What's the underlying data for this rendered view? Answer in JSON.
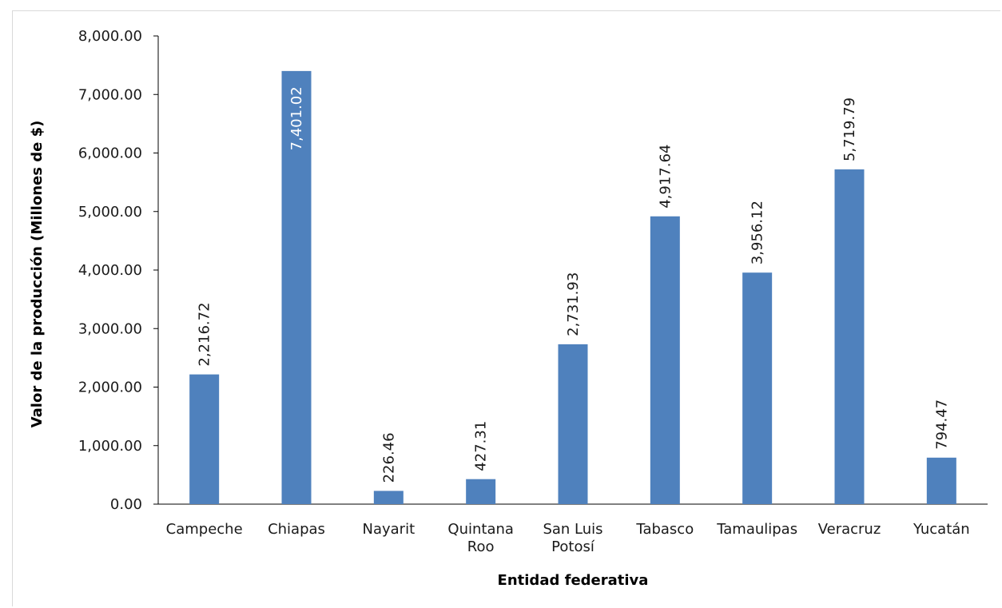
{
  "chart_data": {
    "type": "bar",
    "title": "",
    "xlabel": "Entidad federativa",
    "ylabel": "Valor de la producción (Millones de $)",
    "ylim": [
      0,
      8000
    ],
    "yticks": [
      "0.00",
      "1,000.00",
      "2,000.00",
      "3,000.00",
      "4,000.00",
      "5,000.00",
      "6,000.00",
      "7,000.00",
      "8,000.00"
    ],
    "categories": [
      [
        "Campeche"
      ],
      [
        "Chiapas"
      ],
      [
        "Nayarit"
      ],
      [
        "Quintana",
        "Roo"
      ],
      [
        "San Luis",
        "Potosí"
      ],
      [
        "Tabasco"
      ],
      [
        "Tamaulipas"
      ],
      [
        "Veracruz"
      ],
      [
        "Yucatán"
      ]
    ],
    "values": [
      2216.72,
      7401.02,
      226.46,
      427.31,
      2731.93,
      4917.64,
      3956.12,
      5719.79,
      794.47
    ],
    "data_labels": [
      "2,216.72",
      "7,401.02",
      "226.46",
      "427.31",
      "2,731.93",
      "4,917.64",
      "3,956.12",
      "5,719.79",
      "794.47"
    ],
    "grid": false,
    "legend": "none",
    "colors": {
      "bar": "#4f81bd",
      "axis": "#000000",
      "text": "#1a1a1a"
    }
  }
}
